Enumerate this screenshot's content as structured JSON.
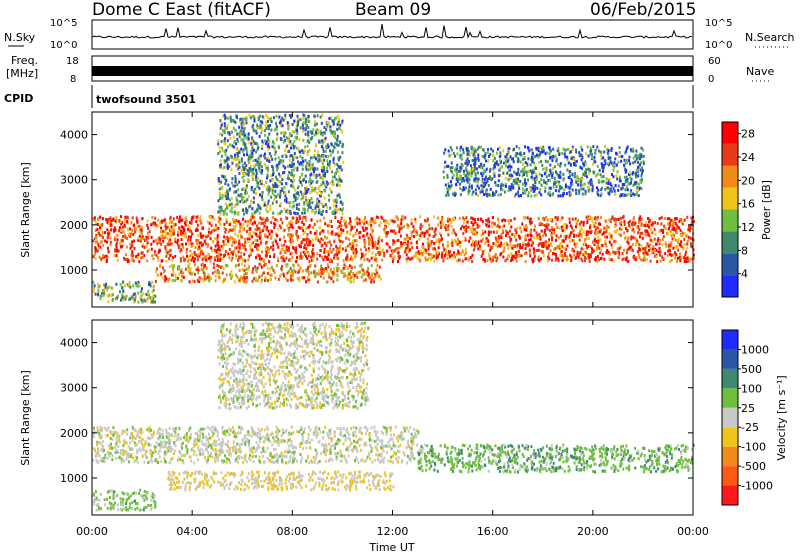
{
  "header": {
    "station": "Dome C East (fitACF)",
    "beam": "Beam 09",
    "date": "06/Feb/2015"
  },
  "strip_nsky": {
    "label": "N.Sky",
    "ticks": [
      "10^5",
      "10^0"
    ],
    "right_label": "N.Search",
    "right_ticks": [
      "10^5",
      "10^0"
    ]
  },
  "strip_freq": {
    "label_line1": "Freq.",
    "label_line2": "[MHz]",
    "ticks": [
      "18",
      "8"
    ],
    "right_label": "Nave",
    "right_ticks": [
      "60",
      "0"
    ]
  },
  "cpid": {
    "label": "CPID",
    "value": "twofsound 3501"
  },
  "x_axis": {
    "label": "Time UT",
    "ticks": [
      "00:00",
      "04:00",
      "08:00",
      "12:00",
      "16:00",
      "20:00",
      "00:00"
    ]
  },
  "colors": {
    "power_scale": [
      "#1f2bff",
      "#2a57a8",
      "#3f8a6e",
      "#6fbf3f",
      "#f0c419",
      "#f08a1a",
      "#e83a16",
      "#ff0000"
    ],
    "velocity_scale": [
      "#ff1a1a",
      "#ff5a14",
      "#f08a1a",
      "#f0c419",
      "#c8c8c8",
      "#6fbf3f",
      "#3f8a6e",
      "#2a57a8",
      "#1f2bff"
    ],
    "ground_scatter": "#c8c8c8"
  },
  "chart_data": [
    {
      "type": "heatmap",
      "title": "",
      "xlabel": "",
      "ylabel": "Slant Range [km]",
      "x_range": [
        "00:00",
        "24:00"
      ],
      "ylim": [
        180,
        4500
      ],
      "y_ticks": [
        "1000",
        "2000",
        "3000",
        "4000"
      ],
      "colorbar": {
        "label": "Power [dB]",
        "ticks": [
          "4",
          "8",
          "12",
          "16",
          "20",
          "24",
          "28"
        ],
        "range": [
          0,
          30
        ]
      },
      "regions": [
        {
          "t0": 0.0,
          "t1": 24.0,
          "r0": 1150,
          "r1": 2150,
          "level": 24
        },
        {
          "t0": 0.0,
          "t1": 2.5,
          "r0": 250,
          "r1": 700,
          "level": 12
        },
        {
          "t0": 2.5,
          "t1": 11.5,
          "r0": 700,
          "r1": 1100,
          "level": 20
        },
        {
          "t0": 5.0,
          "t1": 10.0,
          "r0": 2200,
          "r1": 4400,
          "level": 10
        },
        {
          "t0": 14.0,
          "t1": 22.0,
          "r0": 2600,
          "r1": 3700,
          "level": 8
        }
      ]
    },
    {
      "type": "heatmap",
      "title": "",
      "xlabel": "Time UT",
      "ylabel": "Slant Range [km]",
      "x_range": [
        "00:00",
        "24:00"
      ],
      "ylim": [
        180,
        4500
      ],
      "y_ticks": [
        "1000",
        "2000",
        "3000",
        "4000"
      ],
      "colorbar": {
        "label": "Velocity [m s⁻¹]",
        "ticks": [
          "1000",
          "500",
          "100",
          "25",
          "-25",
          "-100",
          "-500",
          "-1000"
        ],
        "range": [
          -1200,
          1200
        ]
      },
      "regions": [
        {
          "t0": 0.0,
          "t1": 13.0,
          "r0": 1300,
          "r1": 2100,
          "level": 0
        },
        {
          "t0": 13.0,
          "t1": 24.0,
          "r0": 1100,
          "r1": 1700,
          "level": 300
        },
        {
          "t0": 3.0,
          "t1": 12.0,
          "r0": 700,
          "r1": 1100,
          "level": -150
        },
        {
          "t0": 0.0,
          "t1": 2.5,
          "r0": 250,
          "r1": 700,
          "level": 200
        },
        {
          "t0": 5.0,
          "t1": 11.0,
          "r0": 2500,
          "r1": 4400,
          "level": 0
        }
      ]
    }
  ]
}
